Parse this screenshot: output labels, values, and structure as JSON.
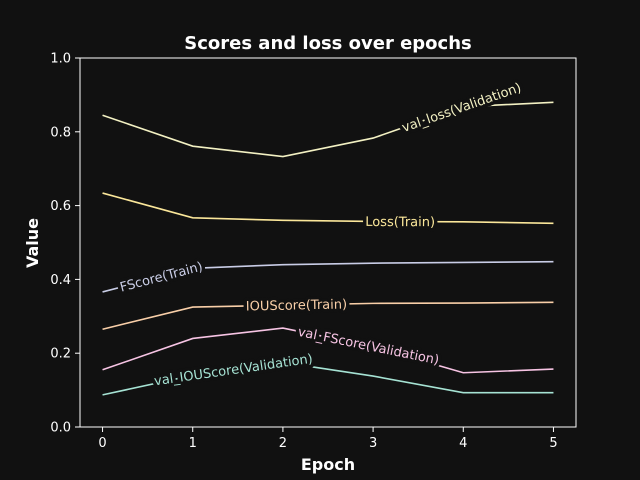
{
  "chart_data": {
    "type": "line",
    "title": "Scores and loss over epochs",
    "xlabel": "Epoch",
    "ylabel": "Value",
    "x": [
      0,
      1,
      2,
      3,
      4,
      5
    ],
    "xlim": [
      -0.25,
      5.25
    ],
    "ylim": [
      0.0,
      1.0
    ],
    "xticks": [
      "0",
      "1",
      "2",
      "3",
      "4",
      "5"
    ],
    "yticks": [
      "0.0",
      "0.2",
      "0.4",
      "0.6",
      "0.8",
      "1.0"
    ],
    "grid": false,
    "legend": "inline labels on lines",
    "series": [
      {
        "name": "val_loss(Validation)",
        "color": "#f3f1c3",
        "values": [
          0.845,
          0.761,
          0.733,
          0.783,
          0.868,
          0.88
        ],
        "label_at": 3.98
      },
      {
        "name": "Loss(Train)",
        "color": "#fbe79a",
        "values": [
          0.634,
          0.567,
          0.56,
          0.557,
          0.556,
          0.552
        ],
        "label_at": 3.3
      },
      {
        "name": "FScore(Train)",
        "color": "#c9cde6",
        "values": [
          0.366,
          0.43,
          0.44,
          0.444,
          0.446,
          0.448
        ],
        "label_at": 0.65
      },
      {
        "name": "IOUScore(Train)",
        "color": "#f9cfa8",
        "values": [
          0.265,
          0.325,
          0.33,
          0.335,
          0.336,
          0.338
        ],
        "label_at": 2.15
      },
      {
        "name": "val_FScore(Validation)",
        "color": "#f7c4e4",
        "values": [
          0.155,
          0.24,
          0.268,
          0.218,
          0.147,
          0.157
        ],
        "label_at": 2.95
      },
      {
        "name": "val_IOUScore(Validation)",
        "color": "#a6e3d4",
        "values": [
          0.087,
          0.14,
          0.175,
          0.138,
          0.093,
          0.093
        ],
        "label_at": 1.45
      }
    ]
  }
}
